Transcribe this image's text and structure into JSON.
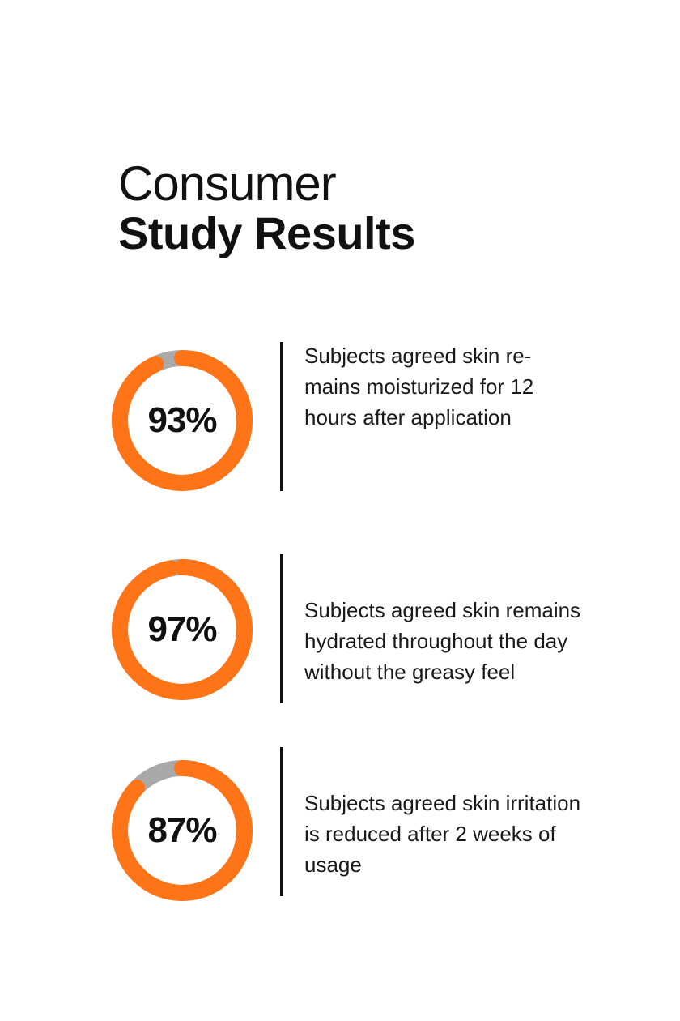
{
  "title": {
    "line1": "Consumer",
    "line2": "Study Results"
  },
  "colors": {
    "accent": "#FF7417",
    "track": "#A9A9A9",
    "text": "#111111"
  },
  "chart_data": [
    {
      "type": "pie",
      "value": 93,
      "max": 100,
      "value_label": "93%",
      "description": "Subjects agreed skin re-\nmains moisturized for 12\nhours after application"
    },
    {
      "type": "pie",
      "value": 97,
      "max": 100,
      "value_label": "97%",
      "description": "Subjects agreed skin remains\nhydrated throughout the day\nwithout the greasy feel"
    },
    {
      "type": "pie",
      "value": 87,
      "max": 100,
      "value_label": "87%",
      "description": "Subjects agreed skin irritation\nis reduced after 2 weeks of\nusage"
    }
  ]
}
